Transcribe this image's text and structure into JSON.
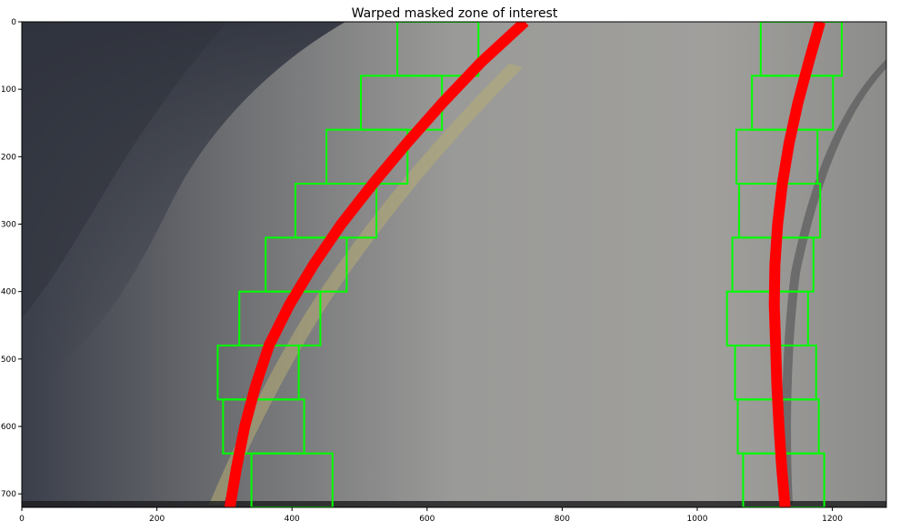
{
  "title": "Warped masked zone of interest",
  "axes": {
    "x_ticks": [
      0,
      200,
      400,
      600,
      800,
      1000,
      1200
    ],
    "y_ticks": [
      0,
      100,
      200,
      300,
      400,
      500,
      600,
      700
    ],
    "xlim": [
      0,
      1280
    ],
    "ylim": [
      720,
      0
    ]
  },
  "colors": {
    "window": "#00ff00",
    "fit_line": "#ff0000"
  },
  "windows_left": [
    {
      "x": 556,
      "y": 0
    },
    {
      "x": 502,
      "y": 80
    },
    {
      "x": 451,
      "y": 160
    },
    {
      "x": 405,
      "y": 240
    },
    {
      "x": 361,
      "y": 320
    },
    {
      "x": 322,
      "y": 400
    },
    {
      "x": 290,
      "y": 480
    },
    {
      "x": 298,
      "y": 560
    },
    {
      "x": 340,
      "y": 640
    }
  ],
  "windows_right": [
    {
      "x": 1094,
      "y": 0
    },
    {
      "x": 1081,
      "y": 80
    },
    {
      "x": 1058,
      "y": 160
    },
    {
      "x": 1062,
      "y": 240
    },
    {
      "x": 1052,
      "y": 320
    },
    {
      "x": 1044,
      "y": 400
    },
    {
      "x": 1056,
      "y": 480
    },
    {
      "x": 1060,
      "y": 560
    },
    {
      "x": 1068,
      "y": 640
    }
  ],
  "fit_left": [
    {
      "x": 745,
      "y": 0
    },
    {
      "x": 680,
      "y": 60
    },
    {
      "x": 623,
      "y": 120
    },
    {
      "x": 570,
      "y": 180
    },
    {
      "x": 520,
      "y": 240
    },
    {
      "x": 473,
      "y": 300
    },
    {
      "x": 432,
      "y": 360
    },
    {
      "x": 396,
      "y": 420
    },
    {
      "x": 366,
      "y": 480
    },
    {
      "x": 346,
      "y": 540
    },
    {
      "x": 330,
      "y": 600
    },
    {
      "x": 318,
      "y": 660
    },
    {
      "x": 308,
      "y": 720
    }
  ],
  "fit_right": [
    {
      "x": 1182,
      "y": 0
    },
    {
      "x": 1165,
      "y": 60
    },
    {
      "x": 1149,
      "y": 120
    },
    {
      "x": 1136,
      "y": 180
    },
    {
      "x": 1126,
      "y": 240
    },
    {
      "x": 1119,
      "y": 300
    },
    {
      "x": 1115,
      "y": 360
    },
    {
      "x": 1114,
      "y": 420
    },
    {
      "x": 1116,
      "y": 480
    },
    {
      "x": 1118,
      "y": 540
    },
    {
      "x": 1121,
      "y": 600
    },
    {
      "x": 1125,
      "y": 660
    },
    {
      "x": 1130,
      "y": 720
    }
  ]
}
